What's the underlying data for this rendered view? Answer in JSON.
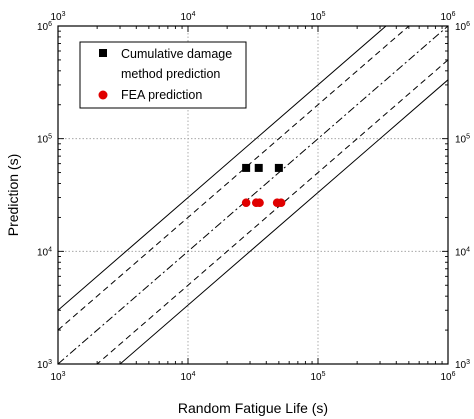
{
  "chart_data": {
    "type": "scatter",
    "x_scale": "log",
    "y_scale": "log",
    "xlim": [
      1000,
      1000000
    ],
    "ylim": [
      1000,
      1000000
    ],
    "xlabel": "Random Fatigue Life (s)",
    "ylabel": "Prediction (s)",
    "x_ticks": [
      {
        "base": "10",
        "exp": "3",
        "value": 1000
      },
      {
        "base": "10",
        "exp": "4",
        "value": 10000
      },
      {
        "base": "10",
        "exp": "5",
        "value": 100000
      },
      {
        "base": "10",
        "exp": "6",
        "value": 1000000
      }
    ],
    "y_ticks": [
      {
        "base": "10",
        "exp": "3",
        "value": 1000
      },
      {
        "base": "10",
        "exp": "4",
        "value": 10000
      },
      {
        "base": "10",
        "exp": "5",
        "value": 100000
      },
      {
        "base": "10",
        "exp": "6",
        "value": 1000000
      }
    ],
    "grid": true,
    "legend_position": "top-left",
    "series": [
      {
        "name": "Cumulative damage method prediction",
        "legend_lines": [
          "Cumulative damage",
          "method prediction"
        ],
        "marker": "square",
        "color": "#000000",
        "points": [
          {
            "x": 28000,
            "y": 55000
          },
          {
            "x": 35000,
            "y": 55000
          },
          {
            "x": 50000,
            "y": 55000
          }
        ]
      },
      {
        "name": "FEA prediction",
        "legend_lines": [
          "FEA prediction"
        ],
        "marker": "circle",
        "color": "#e00000",
        "points": [
          {
            "x": 28000,
            "y": 27000
          },
          {
            "x": 33500,
            "y": 27000
          },
          {
            "x": 35500,
            "y": 27000
          },
          {
            "x": 48500,
            "y": 27000
          },
          {
            "x": 52000,
            "y": 27000
          }
        ]
      }
    ],
    "reference_lines": [
      {
        "factor": 3,
        "style": "solid"
      },
      {
        "factor": 2,
        "style": "dash"
      },
      {
        "factor": 1,
        "style": "dashdot"
      },
      {
        "factor": 0.5,
        "style": "dash"
      },
      {
        "factor": 0.333,
        "style": "solid"
      }
    ]
  }
}
